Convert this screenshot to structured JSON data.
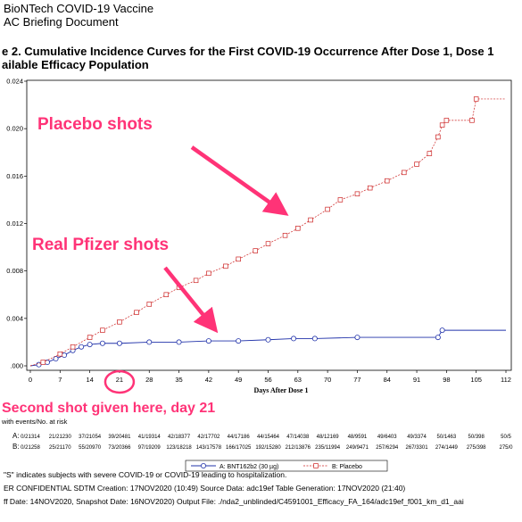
{
  "header": {
    "line1": "BioNTech COVID-19 Vaccine",
    "line2": "AC Briefing Document",
    "title1": "e 2. Cumulative Incidence Curves for the First COVID-19 Occurrence After Dose 1, Dose 1",
    "title2": "ailable Efficacy Population"
  },
  "annotations": {
    "placebo_label": "Placebo shots",
    "pfizer_label": "Real Pfizer shots",
    "second_shot": "Second shot given here, day 21",
    "placebo_color": "#ff3377",
    "pfizer_color": "#ff3377",
    "arrow_color": "#ff3377",
    "circle_color": "#ff3377"
  },
  "chart_data": {
    "type": "line",
    "xlabel": "Days After Dose 1",
    "ylabel": "",
    "xlim": [
      0,
      112
    ],
    "ylim": [
      0,
      0.024
    ],
    "x_ticks": [
      "0",
      "7",
      "14",
      "21",
      "28",
      "35",
      "42",
      "49",
      "56",
      "63",
      "70",
      "77",
      "84",
      "91",
      "98",
      "105",
      "112"
    ],
    "y_tick_values": [
      0.0,
      0.004,
      0.008,
      0.012,
      0.016,
      0.02,
      0.024
    ],
    "y_tick_labels": [
      ".000",
      "0.004",
      "0.008",
      "0.012",
      "0.016",
      "0.020",
      "0.024"
    ],
    "series": [
      {
        "name": "A: BNT162b2 (30 µg)",
        "color": "#2233aa",
        "marker": "circle",
        "points": [
          [
            0,
            0
          ],
          [
            2,
            0.0001
          ],
          [
            4,
            0.0003
          ],
          [
            6,
            0.0006
          ],
          [
            8,
            0.0009
          ],
          [
            10,
            0.0013
          ],
          [
            12,
            0.0016
          ],
          [
            14,
            0.0018
          ],
          [
            17,
            0.0019
          ],
          [
            21,
            0.0019
          ],
          [
            28,
            0.002
          ],
          [
            35,
            0.002
          ],
          [
            42,
            0.0021
          ],
          [
            49,
            0.0021
          ],
          [
            56,
            0.0022
          ],
          [
            62,
            0.0023
          ],
          [
            67,
            0.0023
          ],
          [
            77,
            0.0024
          ],
          [
            96,
            0.0024
          ],
          [
            97,
            0.003
          ],
          [
            112,
            0.003
          ]
        ]
      },
      {
        "name": "B: Placebo",
        "color": "#cc2222",
        "marker": "square",
        "points": [
          [
            0,
            0
          ],
          [
            3,
            0.0003
          ],
          [
            7,
            0.001
          ],
          [
            10,
            0.0016
          ],
          [
            14,
            0.0024
          ],
          [
            17,
            0.003
          ],
          [
            21,
            0.0037
          ],
          [
            25,
            0.0045
          ],
          [
            28,
            0.0052
          ],
          [
            32,
            0.006
          ],
          [
            35,
            0.0066
          ],
          [
            39,
            0.0072
          ],
          [
            42,
            0.0078
          ],
          [
            46,
            0.0084
          ],
          [
            49,
            0.009
          ],
          [
            53,
            0.0097
          ],
          [
            56,
            0.0103
          ],
          [
            60,
            0.011
          ],
          [
            63,
            0.0116
          ],
          [
            66,
            0.0123
          ],
          [
            70,
            0.0132
          ],
          [
            73,
            0.014
          ],
          [
            77,
            0.0145
          ],
          [
            80,
            0.015
          ],
          [
            84,
            0.0156
          ],
          [
            88,
            0.0163
          ],
          [
            91,
            0.017
          ],
          [
            94,
            0.0179
          ],
          [
            96,
            0.0193
          ],
          [
            97,
            0.0203
          ],
          [
            98,
            0.0207
          ],
          [
            104,
            0.0207
          ],
          [
            105,
            0.0225
          ],
          [
            112,
            0.0225
          ]
        ]
      }
    ]
  },
  "risk_table": {
    "heading": "with events/No. at risk",
    "rows": [
      {
        "label": "A:",
        "values": [
          "0/21314",
          "21/21230",
          "37/21054",
          "39/20481",
          "41/19314",
          "42/18377",
          "42/17702",
          "44/17186",
          "44/15464",
          "47/14038",
          "48/12169",
          "48/9591",
          "49/6403",
          "49/3374",
          "50/1463",
          "50/398",
          "50/5"
        ]
      },
      {
        "label": "B:",
        "values": [
          "0/21258",
          "25/21170",
          "55/20970",
          "73/20366",
          "97/19209",
          "123/18218",
          "143/17578",
          "166/17025",
          "192/15280",
          "212/13876",
          "235/11994",
          "249/9471",
          "257/6294",
          "267/3301",
          "274/1449",
          "275/398",
          "275/0"
        ]
      }
    ]
  },
  "legend": {
    "a": "A: BNT162b2 (30 µg)",
    "b": "B: Placebo"
  },
  "footer": {
    "line1": "\"S\" indicates subjects with severe COVID-19 or COVID-19 leading to hospitalization.",
    "line2": "ER CONFIDENTIAL SDTM Creation: 17NOV2020 (10:49) Source Data: adc19ef Table Generation: 17NOV2020 (21:40)",
    "line3": "ff Date: 14NOV2020, Snapshot Date: 16NOV2020) Output File: ./nda2_unblinded/C4591001_Efficacy_FA_164/adc19ef_f001_km_d1_aai"
  }
}
